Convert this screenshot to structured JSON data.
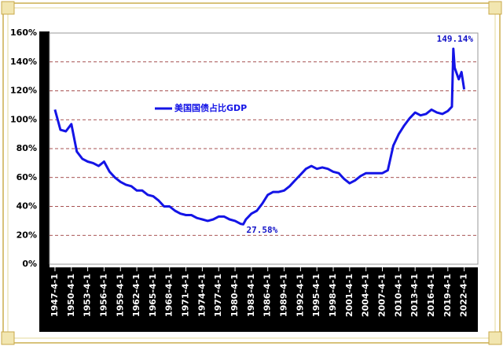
{
  "chart_data": {
    "type": "line",
    "x": [
      "1947-4-1",
      "1948-4-1",
      "1949-4-1",
      "1950-4-1",
      "1951-4-1",
      "1952-4-1",
      "1953-4-1",
      "1954-4-1",
      "1955-4-1",
      "1956-4-1",
      "1957-4-1",
      "1958-4-1",
      "1959-4-1",
      "1960-4-1",
      "1961-4-1",
      "1962-4-1",
      "1963-4-1",
      "1964-4-1",
      "1965-4-1",
      "1966-4-1",
      "1967-4-1",
      "1968-4-1",
      "1969-4-1",
      "1970-4-1",
      "1971-4-1",
      "1972-4-1",
      "1973-4-1",
      "1974-4-1",
      "1975-4-1",
      "1976-4-1",
      "1977-4-1",
      "1978-4-1",
      "1979-4-1",
      "1980-4-1",
      "1981-4-1",
      "1981-10-1",
      "1982-4-1",
      "1983-4-1",
      "1984-4-1",
      "1985-4-1",
      "1986-4-1",
      "1987-4-1",
      "1988-4-1",
      "1989-4-1",
      "1990-4-1",
      "1991-4-1",
      "1992-4-1",
      "1993-4-1",
      "1994-4-1",
      "1995-4-1",
      "1996-4-1",
      "1997-4-1",
      "1998-4-1",
      "1999-4-1",
      "2000-4-1",
      "2001-4-1",
      "2002-4-1",
      "2003-4-1",
      "2004-4-1",
      "2005-4-1",
      "2006-4-1",
      "2007-4-1",
      "2008-4-1",
      "2009-4-1",
      "2010-4-1",
      "2011-4-1",
      "2012-4-1",
      "2013-4-1",
      "2014-4-1",
      "2015-4-1",
      "2016-4-1",
      "2017-4-1",
      "2018-4-1",
      "2019-4-1",
      "2020-1-1",
      "2020-4-1",
      "2020-7-1",
      "2021-4-1",
      "2021-10-1",
      "2022-4-1"
    ],
    "series": [
      {
        "name": "美国国债占比GDP",
        "color": "#1414e6",
        "values": [
          107,
          93,
          92,
          97,
          78,
          73,
          71,
          70,
          68,
          71,
          64,
          60,
          57,
          55,
          54,
          51,
          51,
          48,
          47,
          44,
          40,
          40,
          37,
          35,
          34,
          34,
          32,
          31,
          30,
          31,
          33,
          33,
          31,
          30,
          28,
          27.58,
          31,
          35,
          37,
          42,
          48,
          50,
          50,
          51,
          54,
          58,
          62,
          66,
          68,
          66,
          67,
          66,
          64,
          63,
          59,
          56,
          58,
          61,
          63,
          63,
          63,
          63,
          65,
          82,
          90,
          96,
          101,
          105,
          103,
          104,
          107,
          105,
          104,
          106,
          109,
          149.14,
          136,
          128,
          133,
          121
        ]
      }
    ],
    "xlim": [
      "1946-4-1",
      "2024-10-1"
    ],
    "xticks": [
      "1947-4-1",
      "1950-4-1",
      "1953-4-1",
      "1956-4-1",
      "1959-4-1",
      "1962-4-1",
      "1965-4-1",
      "1968-4-1",
      "1971-4-1",
      "1974-4-1",
      "1977-4-1",
      "1980-4-1",
      "1983-4-1",
      "1986-4-1",
      "1989-4-1",
      "1992-4-1",
      "1995-4-1",
      "1998-4-1",
      "2001-4-1",
      "2004-4-1",
      "2007-4-1",
      "2010-4-1",
      "2013-4-1",
      "2016-4-1",
      "2019-4-1",
      "2022-4-1"
    ],
    "ylim": [
      0,
      160
    ],
    "yticks": [
      {
        "value": 0,
        "label": "0%"
      },
      {
        "value": 20,
        "label": "20%"
      },
      {
        "value": 40,
        "label": "40%"
      },
      {
        "value": 60,
        "label": "60%"
      },
      {
        "value": 80,
        "label": "80%"
      },
      {
        "value": 100,
        "label": "100%"
      },
      {
        "value": 120,
        "label": "120%"
      },
      {
        "value": 140,
        "label": "140%"
      },
      {
        "value": 160,
        "label": "160%"
      }
    ],
    "grid": true,
    "annotations": [
      {
        "x": "1981-10-1",
        "label": "27.58%"
      },
      {
        "x": "2020-4-1",
        "label": "149.14%"
      }
    ]
  }
}
